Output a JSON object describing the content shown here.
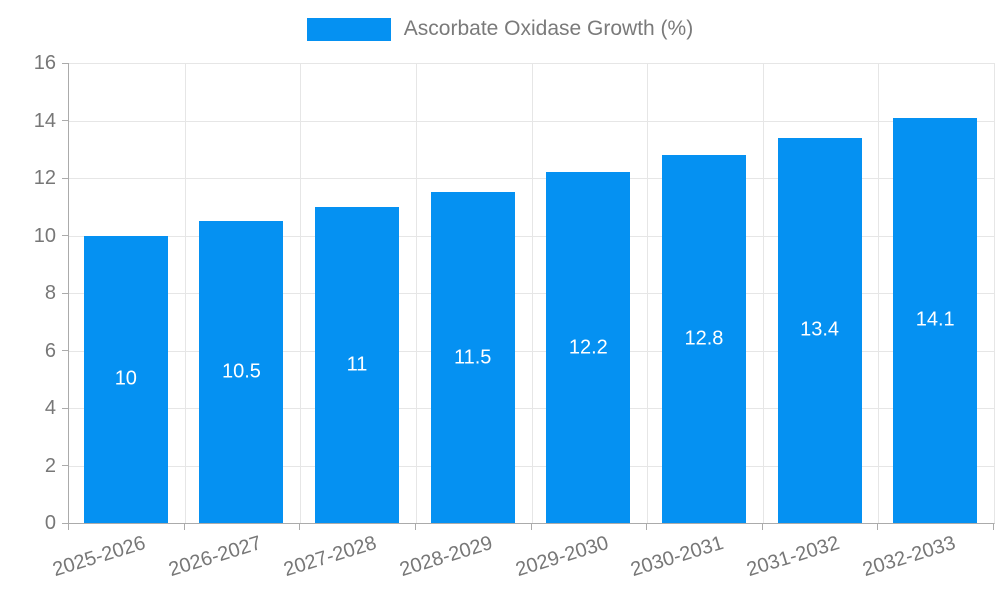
{
  "chart_data": {
    "type": "bar",
    "title": "Ascorbate Oxidase Growth (%)",
    "legend": "Ascorbate Oxidase Growth (%)",
    "legend_position": "top",
    "categories": [
      "2025-2026",
      "2026-2027",
      "2027-2028",
      "2028-2029",
      "2029-2030",
      "2030-2031",
      "2031-2032",
      "2032-2033"
    ],
    "values": [
      10,
      10.5,
      11,
      11.5,
      12.2,
      12.8,
      13.4,
      14.1
    ],
    "value_labels": [
      "10",
      "10.5",
      "11",
      "11.5",
      "12.2",
      "12.8",
      "13.4",
      "14.1"
    ],
    "xlabel": "",
    "ylabel": "",
    "ylim": [
      0,
      16
    ],
    "yticks": [
      0,
      2,
      4,
      6,
      8,
      10,
      12,
      14,
      16
    ],
    "grid": true,
    "colors": {
      "bar": "#0591f2",
      "grid": "#e6e6e6",
      "axis": "#ababab",
      "tick_text": "#777777",
      "legend_text": "#7a7a7a",
      "value_text": "#ffffff",
      "background": "#ffffff"
    }
  }
}
